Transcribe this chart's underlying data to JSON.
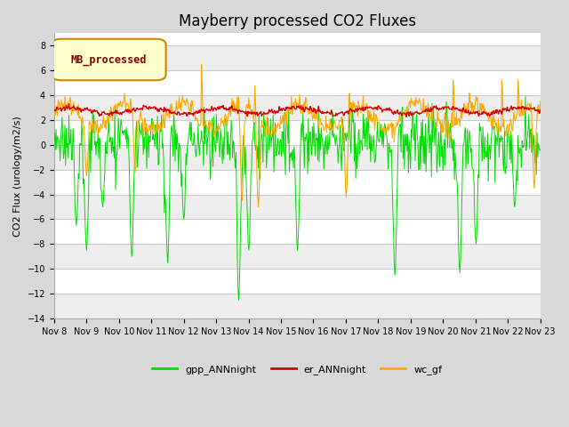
{
  "title": "Mayberry processed CO2 Fluxes",
  "ylabel": "CO2 Flux (urology/m2/s)",
  "ylim": [
    -14,
    9
  ],
  "yticks": [
    -14,
    -12,
    -10,
    -8,
    -6,
    -4,
    -2,
    0,
    2,
    4,
    6,
    8
  ],
  "n_days": 15,
  "pts_per_day": 48,
  "xtick_labels": [
    "Nov 8",
    "Nov 9",
    "Nov 10",
    "Nov 11",
    "Nov 12",
    "Nov 13",
    "Nov 14",
    "Nov 15",
    "Nov 16",
    "Nov 17",
    "Nov 18",
    "Nov 19",
    "Nov 20",
    "Nov 21",
    "Nov 22",
    "Nov 23"
  ],
  "legend_label": "MB_processed",
  "line_gpp": "gpp_ANNnight",
  "line_er": "er_ANNnight",
  "line_wc": "wc_gf",
  "color_gpp": "#00dd00",
  "color_er": "#dd0000",
  "color_wc": "#ffaa00",
  "fig_facecolor": "#d8d8d8",
  "plot_facecolor": "#ffffff",
  "grid_color": "#cccccc",
  "title_fontsize": 12,
  "label_fontsize": 8,
  "tick_fontsize": 7,
  "legend_box_facecolor": "#ffffcc",
  "legend_box_edgecolor": "#cc8800",
  "legend_text_color": "#880000",
  "legend_fontsize": 8
}
